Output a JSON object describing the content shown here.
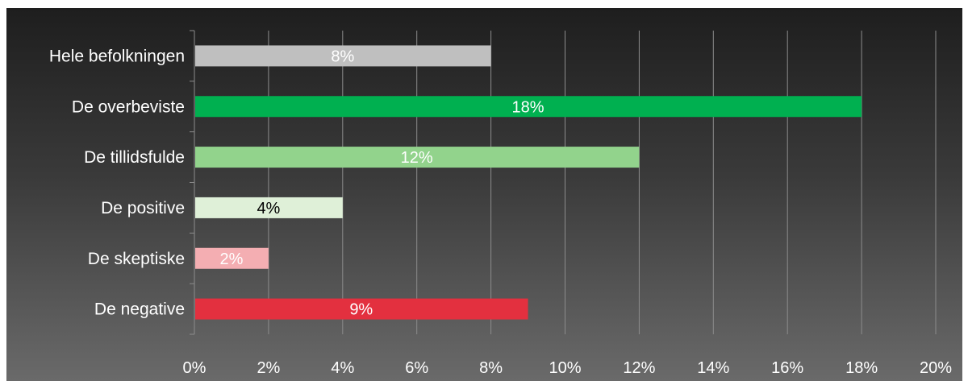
{
  "chart_data": {
    "type": "bar",
    "orientation": "horizontal",
    "categories": [
      "Hele befolkningen",
      "De overbeviste",
      "De tillidsfulde",
      "De positive",
      "De skeptiske",
      "De negative"
    ],
    "values": [
      8,
      18,
      12,
      4,
      2,
      9
    ],
    "value_labels": [
      "8%",
      "18%",
      "12%",
      "4%",
      "2%",
      "9%"
    ],
    "bar_colors": [
      "#bfbfbf",
      "#00b050",
      "#92d38c",
      "#dff0d8",
      "#f4aeb2",
      "#e3303f"
    ],
    "label_colors": [
      "#ffffff",
      "#ffffff",
      "#ffffff",
      "#000000",
      "#ffffff",
      "#ffffff"
    ],
    "xlim": [
      0,
      20
    ],
    "x_ticks": [
      0,
      2,
      4,
      6,
      8,
      10,
      12,
      14,
      16,
      18,
      20
    ],
    "x_tick_labels": [
      "0%",
      "2%",
      "4%",
      "6%",
      "8%",
      "10%",
      "12%",
      "14%",
      "16%",
      "18%",
      "20%"
    ],
    "grid": true,
    "legend": "none",
    "title": "",
    "xlabel": "",
    "ylabel": ""
  }
}
